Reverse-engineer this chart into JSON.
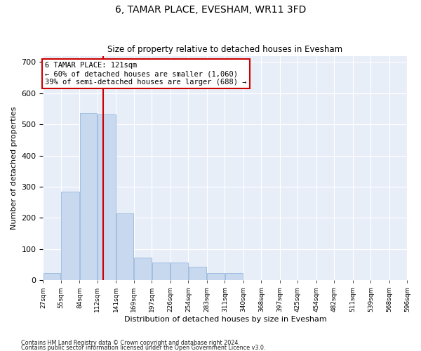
{
  "title": "6, TAMAR PLACE, EVESHAM, WR11 3FD",
  "subtitle": "Size of property relative to detached houses in Evesham",
  "xlabel": "Distribution of detached houses by size in Evesham",
  "ylabel": "Number of detached properties",
  "footnote1": "Contains HM Land Registry data © Crown copyright and database right 2024.",
  "footnote2": "Contains public sector information licensed under the Open Government Licence v3.0.",
  "annotation_line1": "6 TAMAR PLACE: 121sqm",
  "annotation_line2": "← 60% of detached houses are smaller (1,060)",
  "annotation_line3": "39% of semi-detached houses are larger (688) →",
  "property_size": 121,
  "bar_color": "#c8d8ef",
  "bar_edge_color": "#8ab0d8",
  "line_color": "#cc0000",
  "background_color": "#e8eef8",
  "bin_edges": [
    27,
    55,
    84,
    112,
    141,
    169,
    197,
    226,
    254,
    283,
    311,
    340,
    368,
    397,
    425,
    454,
    482,
    511,
    539,
    568,
    596
  ],
  "bar_heights": [
    22,
    283,
    537,
    532,
    215,
    73,
    57,
    57,
    42,
    22,
    22,
    0,
    0,
    0,
    0,
    0,
    0,
    0,
    0,
    0
  ],
  "ylim": [
    0,
    720
  ],
  "yticks": [
    0,
    100,
    200,
    300,
    400,
    500,
    600,
    700
  ],
  "tick_labels": [
    "27sqm",
    "55sqm",
    "84sqm",
    "112sqm",
    "141sqm",
    "169sqm",
    "197sqm",
    "226sqm",
    "254sqm",
    "283sqm",
    "311sqm",
    "340sqm",
    "368sqm",
    "397sqm",
    "425sqm",
    "454sqm",
    "482sqm",
    "511sqm",
    "539sqm",
    "568sqm",
    "596sqm"
  ]
}
